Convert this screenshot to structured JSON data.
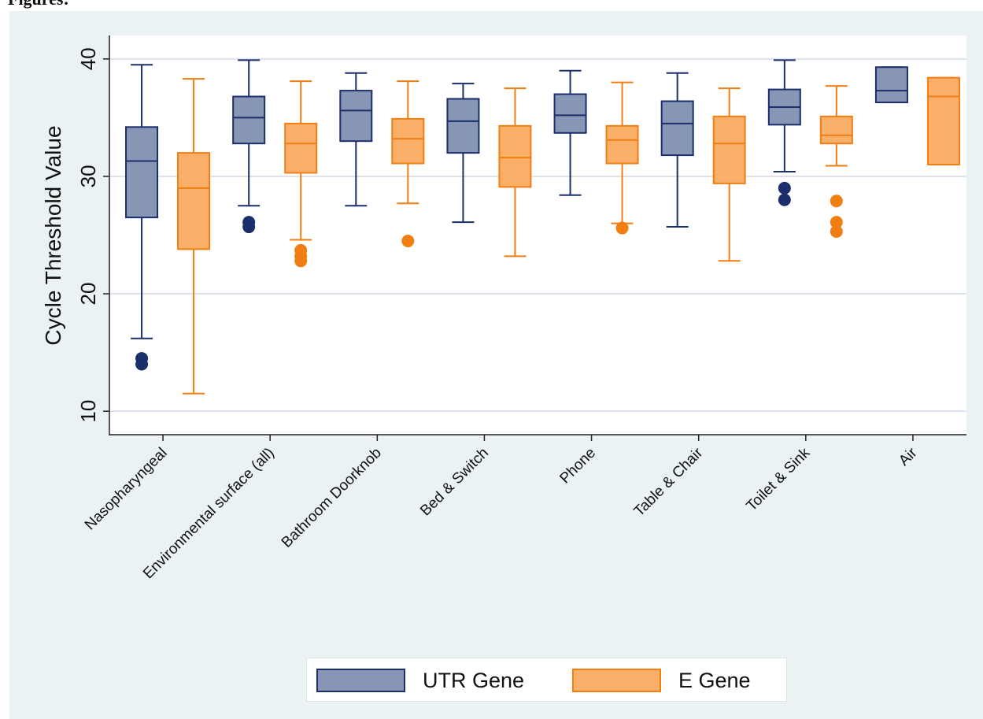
{
  "header": {
    "heading": "Figures:"
  },
  "colors": {
    "utr_fill": "#8796b5",
    "utr_stroke": "#1a2f6b",
    "e_fill": "#fbb06a",
    "e_stroke": "#f07e12",
    "background": "#eaf2f3",
    "plot_background": "#ffffff",
    "grid": "#dfe1ee"
  },
  "chart_data": {
    "type": "box",
    "title": "",
    "xlabel": "",
    "ylabel": "Cycle Threshold Value",
    "ylim": [
      8,
      42
    ],
    "yticks": [
      10,
      20,
      30,
      40
    ],
    "grid": true,
    "legend_position": "bottom",
    "categories": [
      "Nasopharyngeal",
      "Environmental surface (all)",
      "Bathroom Doorknob",
      "Bed & Switch",
      "Phone",
      "Table & Chair",
      "Toilet & Sink",
      "Air"
    ],
    "series": [
      {
        "name": "UTR Gene",
        "boxes": [
          {
            "min": 16.2,
            "q1": 26.5,
            "median": 31.3,
            "q3": 34.2,
            "max": 39.5,
            "outliers": [
              14.0,
              14.5
            ]
          },
          {
            "min": 27.5,
            "q1": 32.8,
            "median": 35.0,
            "q3": 36.8,
            "max": 39.9,
            "outliers": [
              25.7,
              26.1
            ]
          },
          {
            "min": 27.5,
            "q1": 33.0,
            "median": 35.6,
            "q3": 37.3,
            "max": 38.8,
            "outliers": []
          },
          {
            "min": 26.1,
            "q1": 32.0,
            "median": 34.7,
            "q3": 36.6,
            "max": 37.9,
            "outliers": []
          },
          {
            "min": 28.4,
            "q1": 33.7,
            "median": 35.2,
            "q3": 37.0,
            "max": 39.0,
            "outliers": []
          },
          {
            "min": 25.7,
            "q1": 31.8,
            "median": 34.5,
            "q3": 36.4,
            "max": 38.8,
            "outliers": []
          },
          {
            "min": 30.4,
            "q1": 34.4,
            "median": 35.9,
            "q3": 37.4,
            "max": 39.9,
            "outliers": [
              28.0,
              29.0
            ]
          },
          {
            "min": 36.3,
            "q1": 36.3,
            "median": 37.3,
            "q3": 39.3,
            "max": 39.3,
            "outliers": []
          }
        ]
      },
      {
        "name": "E Gene",
        "boxes": [
          {
            "min": 11.5,
            "q1": 23.8,
            "median": 29.0,
            "q3": 32.0,
            "max": 38.3,
            "outliers": []
          },
          {
            "min": 24.6,
            "q1": 30.3,
            "median": 32.8,
            "q3": 34.5,
            "max": 38.1,
            "outliers": [
              22.8,
              23.2,
              23.7
            ]
          },
          {
            "min": 27.7,
            "q1": 31.1,
            "median": 33.2,
            "q3": 34.9,
            "max": 38.1,
            "outliers": [
              24.5
            ]
          },
          {
            "min": 23.2,
            "q1": 29.1,
            "median": 31.6,
            "q3": 34.3,
            "max": 37.5,
            "outliers": []
          },
          {
            "min": 26.0,
            "q1": 31.1,
            "median": 33.1,
            "q3": 34.3,
            "max": 38.0,
            "outliers": [
              25.6
            ]
          },
          {
            "min": 22.8,
            "q1": 29.4,
            "median": 32.8,
            "q3": 35.1,
            "max": 37.5,
            "outliers": []
          },
          {
            "min": 30.9,
            "q1": 32.8,
            "median": 33.5,
            "q3": 35.1,
            "max": 37.7,
            "outliers": [
              25.3,
              26.1,
              27.9
            ]
          },
          {
            "min": 31.0,
            "q1": 31.0,
            "median": 36.8,
            "q3": 38.4,
            "max": 38.4,
            "outliers": []
          }
        ]
      }
    ]
  }
}
